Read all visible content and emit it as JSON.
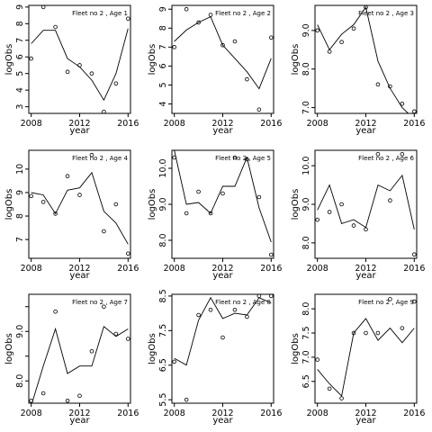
{
  "chart_data": [
    {
      "type": "scatter",
      "title": "Fleet no 2 , Age 1",
      "xlabel": "year",
      "ylabel": "logObs",
      "xlim": [
        2007.8,
        2016.2
      ],
      "ylim": [
        2.6,
        9.1
      ],
      "xticks": [
        2008,
        2012,
        2016
      ],
      "xtick_labels": [
        "2008",
        "2012",
        "2016"
      ],
      "yticks": [
        3,
        4,
        5,
        6,
        7,
        8,
        9
      ],
      "ytick_labels": [
        "3",
        "4",
        "5",
        "6",
        "7",
        "8",
        "9"
      ],
      "obs": {
        "x": [
          2008,
          2009,
          2010,
          2011,
          2012,
          2013,
          2014,
          2015,
          2016
        ],
        "y": [
          5.9,
          9.0,
          7.8,
          5.1,
          5.5,
          5.0,
          2.7,
          4.4,
          8.3
        ]
      },
      "fit": {
        "x": [
          2008,
          2009,
          2010,
          2011,
          2012,
          2013,
          2014,
          2015,
          2016
        ],
        "y": [
          6.8,
          7.6,
          7.6,
          5.9,
          5.4,
          4.6,
          3.4,
          5.0,
          7.7
        ]
      }
    },
    {
      "type": "scatter",
      "title": "Fleet no 2 , Age 2",
      "xlabel": "year",
      "ylabel": "logObs",
      "xlim": [
        2007.8,
        2016.2
      ],
      "ylim": [
        3.5,
        9.2
      ],
      "xticks": [
        2008,
        2012,
        2016
      ],
      "xtick_labels": [
        "2008",
        "2012",
        "2016"
      ],
      "yticks": [
        4,
        5,
        6,
        7,
        8,
        9
      ],
      "ytick_labels": [
        "4",
        "5",
        "6",
        "7",
        "8",
        "9"
      ],
      "obs": {
        "x": [
          2008,
          2009,
          2010,
          2011,
          2012,
          2013,
          2014,
          2015,
          2016
        ],
        "y": [
          7.0,
          9.0,
          8.3,
          8.7,
          7.1,
          7.3,
          5.3,
          3.7,
          7.5
        ]
      },
      "fit": {
        "x": [
          2008,
          2009,
          2010,
          2011,
          2012,
          2013,
          2014,
          2015,
          2016
        ],
        "y": [
          7.3,
          7.9,
          8.3,
          8.6,
          7.1,
          6.4,
          5.7,
          4.8,
          6.4
        ]
      }
    },
    {
      "type": "scatter",
      "title": "Fleet no 2 , Age 3",
      "xlabel": "year",
      "ylabel": "logObs",
      "xlim": [
        2007.8,
        2016.2
      ],
      "ylim": [
        6.85,
        9.65
      ],
      "xticks": [
        2008,
        2012,
        2016
      ],
      "xtick_labels": [
        "2008",
        "2012",
        "2016"
      ],
      "yticks": [
        7.0,
        8.0,
        9.0
      ],
      "ytick_labels": [
        "7.0",
        "8.0",
        "9.0"
      ],
      "obs": {
        "x": [
          2008,
          2009,
          2010,
          2011,
          2012,
          2013,
          2014,
          2015,
          2016
        ],
        "y": [
          9.0,
          8.45,
          8.7,
          9.05,
          9.6,
          7.6,
          7.55,
          7.1,
          6.9
        ]
      },
      "fit": {
        "x": [
          2008,
          2009,
          2010,
          2011,
          2012,
          2013,
          2014,
          2015,
          2016
        ],
        "y": [
          9.15,
          8.5,
          8.9,
          9.15,
          9.6,
          8.2,
          7.5,
          7.0,
          6.7
        ]
      }
    },
    {
      "type": "scatter",
      "title": "Fleet no 2 , Age 4",
      "xlabel": "year",
      "ylabel": "logObs",
      "xlim": [
        2007.8,
        2016.2
      ],
      "ylim": [
        6.2,
        10.8
      ],
      "xticks": [
        2008,
        2012,
        2016
      ],
      "xtick_labels": [
        "2008",
        "2012",
        "2016"
      ],
      "yticks": [
        7,
        8,
        9,
        10
      ],
      "ytick_labels": [
        "7",
        "8",
        "9",
        "10"
      ],
      "obs": {
        "x": [
          2008,
          2009,
          2010,
          2011,
          2012,
          2013,
          2014,
          2015,
          2016
        ],
        "y": [
          8.85,
          8.6,
          8.1,
          9.7,
          8.9,
          10.6,
          7.35,
          8.5,
          6.4
        ]
      },
      "fit": {
        "x": [
          2008,
          2009,
          2010,
          2011,
          2012,
          2013,
          2014,
          2015,
          2016
        ],
        "y": [
          9.0,
          8.9,
          8.1,
          9.1,
          9.2,
          9.85,
          8.2,
          7.7,
          6.8
        ]
      }
    },
    {
      "type": "scatter",
      "title": "Fleet no 2 , Age 5",
      "xlabel": "year",
      "ylabel": "logObs",
      "xlim": [
        2007.8,
        2016.2
      ],
      "ylim": [
        7.5,
        10.5
      ],
      "xticks": [
        2008,
        2012,
        2016
      ],
      "xtick_labels": [
        "2008",
        "2012",
        "2016"
      ],
      "yticks": [
        8.0,
        9.0,
        10.0
      ],
      "ytick_labels": [
        "8.0",
        "9.0",
        "10.0"
      ],
      "obs": {
        "x": [
          2008,
          2009,
          2010,
          2011,
          2012,
          2013,
          2014,
          2015,
          2016
        ],
        "y": [
          10.3,
          8.75,
          9.35,
          8.75,
          9.3,
          10.3,
          10.25,
          9.2,
          7.6
        ]
      },
      "fit": {
        "x": [
          2008,
          2009,
          2010,
          2011,
          2012,
          2013,
          2014,
          2015,
          2016
        ],
        "y": [
          10.5,
          9.0,
          9.05,
          8.75,
          9.5,
          9.5,
          10.3,
          8.9,
          7.95
        ]
      }
    },
    {
      "type": "scatter",
      "title": "Fleet no 2 , Age 6",
      "xlabel": "year",
      "ylabel": "logObs",
      "xlim": [
        2007.8,
        2016.2
      ],
      "ylim": [
        7.6,
        10.4
      ],
      "xticks": [
        2008,
        2012,
        2016
      ],
      "xtick_labels": [
        "2008",
        "2012",
        "2016"
      ],
      "yticks": [
        8.0,
        9.0,
        10.0
      ],
      "ytick_labels": [
        "8.0",
        "9.0",
        "10.0"
      ],
      "obs": {
        "x": [
          2008,
          2009,
          2010,
          2011,
          2012,
          2013,
          2014,
          2015,
          2016
        ],
        "y": [
          8.6,
          8.8,
          9.0,
          8.45,
          8.35,
          10.3,
          9.1,
          10.3,
          7.7
        ]
      },
      "fit": {
        "x": [
          2008,
          2009,
          2010,
          2011,
          2012,
          2013,
          2014,
          2015,
          2016
        ],
        "y": [
          8.85,
          9.5,
          8.5,
          8.6,
          8.4,
          9.5,
          9.35,
          9.75,
          8.35
        ]
      }
    },
    {
      "type": "scatter",
      "title": "Fleet no 2 , Age 7",
      "xlabel": "year",
      "ylabel": "logObs",
      "xlim": [
        2007.8,
        2016.2
      ],
      "ylim": [
        7.55,
        9.75
      ],
      "xticks": [
        2008,
        2012,
        2016
      ],
      "xtick_labels": [
        "2008",
        "2012",
        "2016"
      ],
      "yticks": [
        8.0,
        8.5,
        9.0,
        9.5
      ],
      "ytick_labels": [
        "8.0",
        "",
        "9.0",
        ""
      ],
      "obs": {
        "x": [
          2008,
          2009,
          2010,
          2011,
          2012,
          2013,
          2014,
          2015,
          2016
        ],
        "y": [
          7.6,
          7.75,
          9.4,
          7.6,
          7.7,
          8.6,
          9.5,
          8.95,
          8.85
        ]
      },
      "fit": {
        "x": [
          2008,
          2009,
          2010,
          2011,
          2012,
          2013,
          2014,
          2015,
          2016
        ],
        "y": [
          7.5,
          8.3,
          9.05,
          8.15,
          8.3,
          8.3,
          9.1,
          8.9,
          9.05
        ]
      }
    },
    {
      "type": "scatter",
      "title": "Fleet no 2 , Age 8",
      "xlabel": "year",
      "ylabel": "logObs",
      "xlim": [
        2007.8,
        2016.2
      ],
      "ylim": [
        5.4,
        8.55
      ],
      "xticks": [
        2008,
        2012,
        2016
      ],
      "xtick_labels": [
        "2008",
        "2012",
        "2016"
      ],
      "yticks": [
        5.5,
        6.5,
        7.5,
        8.5
      ],
      "ytick_labels": [
        "5.5",
        "6.5",
        "7.5",
        "8.5"
      ],
      "obs": {
        "x": [
          2008,
          2009,
          2010,
          2011,
          2012,
          2013,
          2014,
          2015,
          2016
        ],
        "y": [
          6.6,
          5.5,
          7.95,
          8.1,
          7.3,
          8.1,
          7.9,
          8.5,
          8.5
        ]
      },
      "fit": {
        "x": [
          2008,
          2009,
          2010,
          2011,
          2012,
          2013,
          2014,
          2015,
          2016
        ],
        "y": [
          6.7,
          6.5,
          7.8,
          8.45,
          7.85,
          8.0,
          7.95,
          8.45,
          8.3
        ]
      }
    },
    {
      "type": "scatter",
      "title": "Fleet no 2 , Age 9",
      "xlabel": "year",
      "ylabel": "logObs",
      "xlim": [
        2007.8,
        2016.2
      ],
      "ylim": [
        6.05,
        8.3
      ],
      "xticks": [
        2008,
        2012,
        2016
      ],
      "xtick_labels": [
        "2008",
        "2012",
        "2016"
      ],
      "yticks": [
        6.5,
        7.0,
        7.5,
        8.0
      ],
      "ytick_labels": [
        "6.5",
        "7.0",
        "7.5",
        "8.0"
      ],
      "obs": {
        "x": [
          2008,
          2009,
          2010,
          2011,
          2012,
          2013,
          2014,
          2015,
          2016
        ],
        "y": [
          6.95,
          6.35,
          6.15,
          7.5,
          7.5,
          7.5,
          8.2,
          7.6,
          8.15
        ]
      },
      "fit": {
        "x": [
          2008,
          2009,
          2010,
          2011,
          2012,
          2013,
          2014,
          2015,
          2016
        ],
        "y": [
          6.75,
          6.45,
          6.2,
          7.5,
          7.8,
          7.35,
          7.6,
          7.3,
          7.6
        ]
      }
    }
  ]
}
